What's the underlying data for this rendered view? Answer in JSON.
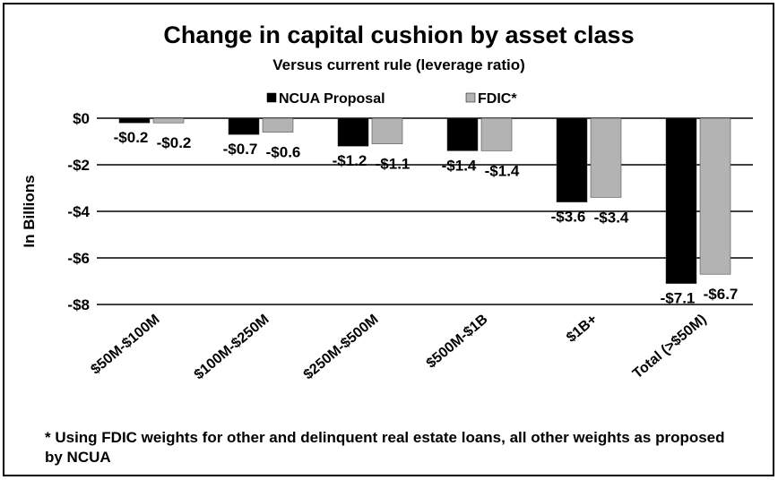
{
  "chart_data": {
    "type": "bar",
    "title": "Change in capital cushion by asset class",
    "subtitle": "Versus current rule (leverage ratio)",
    "y_axis_label": "In Billions",
    "categories": [
      "$50M-$100M",
      "$100M-$250M",
      "$250M-$500M",
      "$500M-$1B",
      "$1B+",
      "Total (>$50M)"
    ],
    "series": [
      {
        "name": "NCUA Proposal",
        "color": "#000000",
        "values": [
          -0.2,
          -0.7,
          -1.2,
          -1.4,
          -3.6,
          -7.1
        ],
        "value_labels": [
          "-$0.2",
          "-$0.7",
          "-$1.2",
          "-$1.4",
          "-$3.6",
          "-$7.1"
        ]
      },
      {
        "name": "FDIC*",
        "color": "#b3b3b3",
        "values": [
          -0.2,
          -0.6,
          -1.1,
          -1.4,
          -3.4,
          -6.7
        ],
        "value_labels": [
          "-$0.2",
          "-$0.6",
          "-$1.1",
          "-$1.4",
          "-$3.4",
          "-$6.7"
        ]
      }
    ],
    "ylim": [
      -8,
      0
    ],
    "yticks": [
      {
        "value": 0,
        "label": "$0"
      },
      {
        "value": -2,
        "label": "-$2"
      },
      {
        "value": -4,
        "label": "-$4"
      },
      {
        "value": -6,
        "label": "-$6"
      },
      {
        "value": -8,
        "label": "-$8"
      }
    ],
    "grid": true,
    "legend": "top",
    "footnote": "* Using FDIC weights for other and delinquent real estate loans, all other weights as proposed by NCUA"
  }
}
